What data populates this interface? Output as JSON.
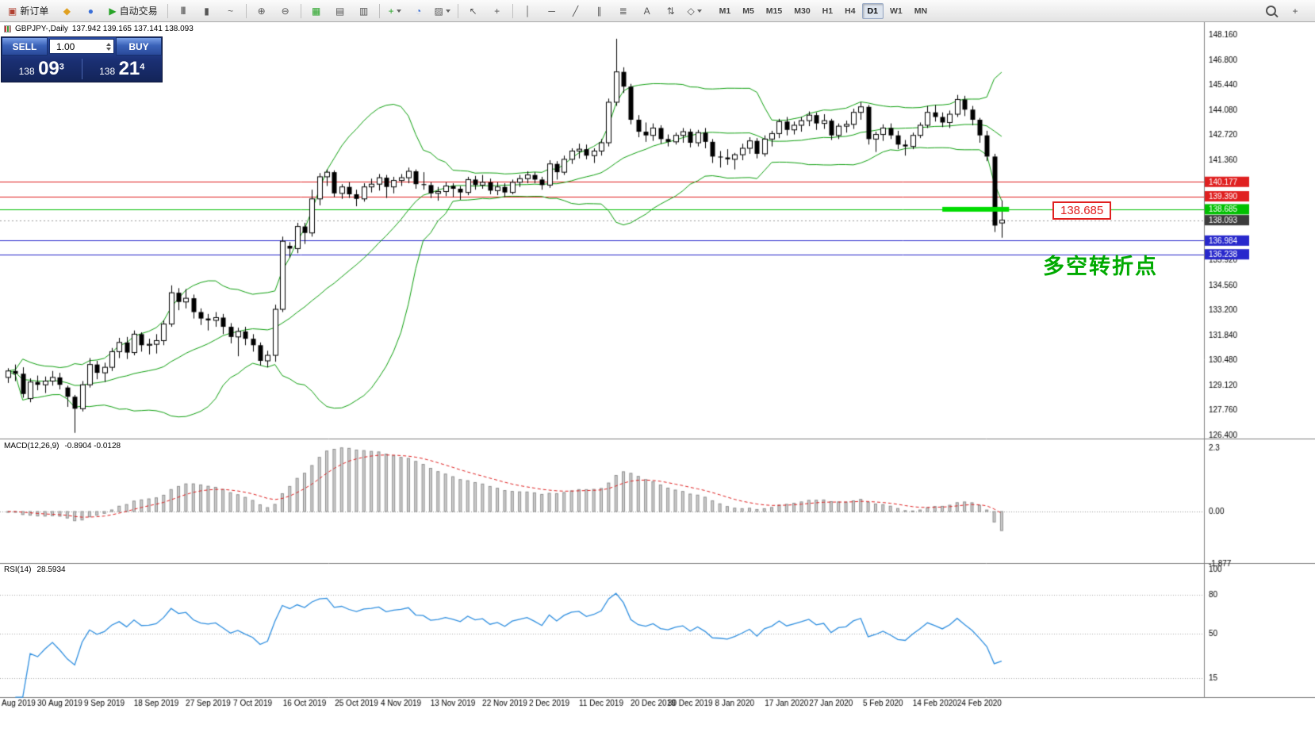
{
  "toolbar": {
    "items": [
      {
        "type": "button",
        "name": "new-order-button",
        "glyph": "▣",
        "color": "#b04030",
        "label": "新订单"
      },
      {
        "type": "icon",
        "name": "metaeditor-icon",
        "glyph": "◆",
        "color": "#e0a020"
      },
      {
        "type": "icon",
        "name": "refresh-icon",
        "glyph": "●",
        "color": "#3a6fd8"
      },
      {
        "type": "button",
        "name": "autotrading-button",
        "glyph": "▶",
        "color": "#28a428",
        "label": "自动交易"
      },
      {
        "type": "sep"
      },
      {
        "type": "icon",
        "name": "bar-chart-icon",
        "glyph": "|||",
        "bars": true
      },
      {
        "type": "icon",
        "name": "candlestick-chart-icon",
        "glyph": "▮"
      },
      {
        "type": "icon",
        "name": "line-chart-icon",
        "glyph": "~"
      },
      {
        "type": "sep"
      },
      {
        "type": "icon",
        "name": "zoom-in-icon",
        "glyph": "⊕"
      },
      {
        "type": "icon",
        "name": "zoom-out-icon",
        "glyph": "⊖"
      },
      {
        "type": "sep"
      },
      {
        "type": "icon",
        "name": "tile-windows-icon",
        "glyph": "▦",
        "color": "#28a428"
      },
      {
        "type": "icon",
        "name": "cascade-windows-icon",
        "glyph": "▤"
      },
      {
        "type": "icon",
        "name": "stack-windows-icon",
        "glyph": "▥"
      },
      {
        "type": "sep"
      },
      {
        "type": "icon",
        "name": "indicators-icon",
        "glyph": "+",
        "color": "#28a428",
        "dropdown": true
      },
      {
        "type": "icon",
        "name": "cycles-icon",
        "glyph": "◔",
        "color": "#3a6fd8"
      },
      {
        "type": "icon",
        "name": "templates-icon",
        "glyph": "▨",
        "dropdown": true
      },
      {
        "type": "sep"
      },
      {
        "type": "icon",
        "name": "cursor-icon",
        "glyph": "↖"
      },
      {
        "type": "icon",
        "name": "crosshair-icon",
        "glyph": "+"
      },
      {
        "type": "sep"
      },
      {
        "type": "icon",
        "name": "vertical-line-icon",
        "glyph": "│"
      },
      {
        "type": "icon",
        "name": "horizontal-line-icon",
        "glyph": "─"
      },
      {
        "type": "icon",
        "name": "trendline-icon",
        "glyph": "╱"
      },
      {
        "type": "icon",
        "name": "channel-icon",
        "glyph": "∥"
      },
      {
        "type": "icon",
        "name": "fibonacci-icon",
        "glyph": "≣"
      },
      {
        "type": "icon",
        "name": "text-icon",
        "glyph": "A"
      },
      {
        "type": "icon",
        "name": "arrows-icon",
        "glyph": "⇅"
      },
      {
        "type": "icon",
        "name": "shapes-icon",
        "glyph": "◇",
        "dropdown": true
      }
    ],
    "timeframes": [
      "M1",
      "M5",
      "M15",
      "M30",
      "H1",
      "H4",
      "D1",
      "W1",
      "MN"
    ],
    "active_timeframe": "D1",
    "right_items": [
      {
        "name": "search-icon",
        "kind": "magnifier"
      },
      {
        "name": "crosshair-pointer-icon",
        "glyph": "+"
      }
    ]
  },
  "chart": {
    "symbol": "GBPJPY-,Daily",
    "ohlc": "137.942 139.165 137.141 138.093"
  },
  "trade_panel": {
    "sell_label": "SELL",
    "buy_label": "BUY",
    "volume": "1.00",
    "sell_price": {
      "prefix": "138",
      "big": "09",
      "sup": "3"
    },
    "buy_price": {
      "prefix": "138",
      "big": "21",
      "sup": "4"
    }
  },
  "annotations": {
    "price_label": "138.685",
    "note_text": "多空转折点"
  },
  "indicators": {
    "macd": {
      "title": "MACD(12,26,9)",
      "values": "-0.8904 -0.0128",
      "fast": 12,
      "slow": 26,
      "signal_period": 9,
      "axis": [
        {
          "text": "2.3",
          "value": 2.3
        },
        {
          "text": "0.00",
          "value": 0
        },
        {
          "text": "-1.877",
          "value": -1.877
        }
      ],
      "signal_color": "#e02020",
      "hist_fill": "#cdcdcd",
      "hist_stroke": "#8f8f8f"
    },
    "rsi": {
      "title": "RSI(14)",
      "value": "28.5934",
      "period": 14,
      "axis": [
        {
          "text": "100",
          "value": 100
        },
        {
          "text": "80",
          "value": 80
        },
        {
          "text": "50",
          "value": 50
        },
        {
          "text": "15",
          "value": 15
        }
      ],
      "levels": [
        80,
        50,
        15
      ],
      "line_color": "#2f8fe0"
    }
  },
  "main_chart": {
    "price_axis": [
      "148.160",
      "146.800",
      "145.440",
      "144.080",
      "142.720",
      "141.360",
      "135.920",
      "134.560",
      "133.200",
      "131.840",
      "130.480",
      "129.120",
      "127.760",
      "126.400"
    ],
    "hlines": [
      {
        "label": "140.177",
        "color": "#e02020"
      },
      {
        "label": "139.390",
        "color": "#e02020"
      },
      {
        "label": "138.685",
        "color": "#00c000"
      },
      {
        "label": "136.984",
        "color": "#2828cc"
      },
      {
        "label": "136.238",
        "color": "#2828cc"
      }
    ],
    "current_price": {
      "label": "138.093",
      "color": "#3c3c3c"
    },
    "highlight": {
      "price": 138.685,
      "from_index": 126,
      "to_index": 135,
      "color": "#00dc00"
    },
    "bollinger": {
      "period": 20,
      "deviation": 2,
      "color": "#0fa00f"
    },
    "date_labels": [
      {
        "i": 0,
        "t": "Aug 2019"
      },
      {
        "i": 7,
        "t": "30 Aug 2019"
      },
      {
        "i": 13,
        "t": "9 Sep 2019"
      },
      {
        "i": 20,
        "t": "18 Sep 2019"
      },
      {
        "i": 27,
        "t": "27 Sep 2019"
      },
      {
        "i": 33,
        "t": "7 Oct 2019"
      },
      {
        "i": 40,
        "t": "16 Oct 2019"
      },
      {
        "i": 47,
        "t": "25 Oct 2019"
      },
      {
        "i": 53,
        "t": "4 Nov 2019"
      },
      {
        "i": 60,
        "t": "13 Nov 2019"
      },
      {
        "i": 67,
        "t": "22 Nov 2019"
      },
      {
        "i": 73,
        "t": "2 Dec 2019"
      },
      {
        "i": 80,
        "t": "11 Dec 2019"
      },
      {
        "i": 87,
        "t": "20 Dec 2019"
      },
      {
        "i": 92,
        "t": "30 Dec 2019"
      },
      {
        "i": 98,
        "t": "8 Jan 2020"
      },
      {
        "i": 105,
        "t": "17 Jan 2020"
      },
      {
        "i": 111,
        "t": "27 Jan 2020"
      },
      {
        "i": 118,
        "t": "5 Feb 2020"
      },
      {
        "i": 125,
        "t": "14 Feb 2020"
      },
      {
        "i": 131,
        "t": "24 Feb 2020"
      }
    ],
    "candles": [
      [
        129.55,
        130.05,
        129.25,
        129.9
      ],
      [
        129.9,
        130.25,
        129.35,
        129.75
      ],
      [
        129.75,
        130.1,
        128.45,
        128.65
      ],
      [
        128.4,
        129.5,
        128.2,
        129.3
      ],
      [
        129.3,
        129.65,
        128.85,
        129.15
      ],
      [
        129.15,
        129.6,
        128.7,
        129.35
      ],
      [
        129.35,
        129.9,
        129.1,
        129.55
      ],
      [
        129.55,
        129.8,
        128.9,
        129.15
      ],
      [
        129.0,
        129.1,
        127.95,
        128.5
      ],
      [
        128.5,
        128.6,
        126.54,
        127.85
      ],
      [
        127.85,
        129.35,
        127.7,
        129.15
      ],
      [
        129.15,
        130.6,
        129.0,
        130.25
      ],
      [
        130.25,
        130.45,
        129.45,
        129.8
      ],
      [
        129.8,
        130.35,
        129.3,
        130.1
      ],
      [
        130.1,
        131.15,
        129.9,
        130.95
      ],
      [
        130.95,
        131.7,
        130.6,
        131.45
      ],
      [
        131.45,
        131.75,
        130.55,
        130.9
      ],
      [
        130.9,
        132.1,
        130.75,
        131.9
      ],
      [
        131.9,
        132.0,
        130.95,
        131.3
      ],
      [
        131.3,
        131.65,
        130.8,
        131.35
      ],
      [
        131.35,
        131.9,
        130.85,
        131.55
      ],
      [
        131.55,
        132.65,
        131.3,
        132.45
      ],
      [
        132.45,
        134.55,
        132.3,
        134.15
      ],
      [
        134.15,
        134.4,
        133.2,
        133.65
      ],
      [
        133.65,
        134.35,
        133.3,
        133.85
      ],
      [
        133.85,
        134.05,
        132.75,
        133.1
      ],
      [
        133.1,
        133.3,
        132.4,
        132.75
      ],
      [
        132.75,
        133.0,
        132.1,
        132.65
      ],
      [
        132.65,
        133.1,
        132.3,
        132.8
      ],
      [
        132.8,
        133.0,
        131.9,
        132.3
      ],
      [
        132.3,
        132.5,
        131.4,
        131.75
      ],
      [
        131.75,
        132.25,
        130.7,
        132.05
      ],
      [
        132.05,
        132.3,
        131.3,
        131.65
      ],
      [
        131.65,
        131.9,
        130.95,
        131.3
      ],
      [
        131.3,
        131.45,
        130.2,
        130.45
      ],
      [
        130.45,
        131.0,
        130.1,
        130.75
      ],
      [
        130.75,
        133.5,
        130.4,
        133.25
      ],
      [
        133.25,
        137.2,
        133.1,
        136.95
      ],
      [
        136.7,
        136.9,
        136.05,
        136.55
      ],
      [
        136.55,
        137.95,
        136.3,
        137.75
      ],
      [
        137.75,
        137.95,
        136.8,
        137.4
      ],
      [
        137.4,
        139.75,
        137.2,
        139.25
      ],
      [
        139.25,
        140.65,
        138.9,
        140.45
      ],
      [
        140.45,
        140.85,
        139.95,
        140.7
      ],
      [
        140.7,
        140.8,
        139.35,
        139.55
      ],
      [
        139.55,
        140.05,
        139.25,
        139.9
      ],
      [
        139.9,
        140.15,
        139.3,
        139.5
      ],
      [
        139.5,
        139.75,
        138.85,
        139.25
      ],
      [
        139.25,
        140.1,
        139.1,
        139.9
      ],
      [
        139.9,
        140.35,
        139.6,
        140.05
      ],
      [
        140.05,
        140.6,
        139.7,
        140.4
      ],
      [
        140.4,
        140.55,
        139.3,
        139.9
      ],
      [
        139.9,
        140.45,
        139.55,
        140.25
      ],
      [
        140.25,
        140.6,
        139.95,
        140.4
      ],
      [
        140.4,
        140.95,
        140.1,
        140.75
      ],
      [
        140.75,
        140.85,
        139.8,
        140.05
      ],
      [
        140.05,
        140.7,
        139.75,
        140.0
      ],
      [
        140.0,
        140.15,
        139.3,
        139.55
      ],
      [
        139.55,
        139.9,
        139.15,
        139.65
      ],
      [
        139.65,
        140.15,
        139.4,
        139.95
      ],
      [
        139.95,
        140.1,
        139.35,
        139.8
      ],
      [
        139.8,
        139.95,
        139.2,
        139.6
      ],
      [
        139.6,
        140.45,
        139.45,
        140.3
      ],
      [
        140.3,
        140.5,
        139.75,
        140.0
      ],
      [
        140.0,
        140.55,
        139.8,
        140.15
      ],
      [
        140.15,
        140.35,
        139.5,
        139.7
      ],
      [
        139.7,
        140.15,
        139.45,
        139.9
      ],
      [
        139.9,
        140.1,
        139.35,
        139.6
      ],
      [
        139.6,
        140.3,
        139.5,
        140.15
      ],
      [
        140.15,
        140.55,
        139.9,
        140.35
      ],
      [
        140.35,
        140.75,
        140.1,
        140.55
      ],
      [
        140.55,
        140.7,
        140.1,
        140.3
      ],
      [
        140.3,
        140.45,
        139.75,
        140.0
      ],
      [
        140.0,
        141.35,
        139.85,
        141.15
      ],
      [
        141.15,
        141.3,
        140.3,
        140.7
      ],
      [
        140.7,
        141.6,
        140.55,
        141.4
      ],
      [
        141.4,
        142.0,
        141.15,
        141.85
      ],
      [
        141.85,
        142.25,
        141.45,
        141.95
      ],
      [
        141.95,
        142.2,
        141.4,
        141.6
      ],
      [
        141.6,
        142.0,
        141.2,
        141.85
      ],
      [
        141.85,
        142.5,
        141.6,
        142.3
      ],
      [
        142.3,
        144.7,
        142.1,
        144.5
      ],
      [
        144.5,
        147.95,
        144.3,
        146.15
      ],
      [
        146.15,
        146.4,
        145.0,
        145.35
      ],
      [
        145.35,
        145.5,
        143.3,
        143.55
      ],
      [
        143.55,
        143.8,
        142.6,
        142.9
      ],
      [
        142.9,
        143.4,
        142.35,
        142.7
      ],
      [
        142.7,
        143.35,
        142.4,
        143.1
      ],
      [
        143.1,
        143.25,
        142.25,
        142.5
      ],
      [
        142.5,
        142.75,
        142.1,
        142.35
      ],
      [
        142.35,
        142.85,
        142.2,
        142.7
      ],
      [
        142.7,
        143.1,
        142.3,
        142.9
      ],
      [
        142.9,
        143.05,
        142.05,
        142.3
      ],
      [
        142.3,
        143.0,
        142.1,
        142.85
      ],
      [
        142.85,
        143.1,
        142.0,
        142.35
      ],
      [
        142.35,
        142.5,
        141.2,
        141.55
      ],
      [
        141.55,
        141.85,
        140.95,
        141.5
      ],
      [
        141.5,
        141.95,
        141.1,
        141.4
      ],
      [
        141.4,
        141.75,
        140.85,
        141.65
      ],
      [
        141.65,
        142.25,
        141.35,
        142.0
      ],
      [
        142.0,
        142.6,
        141.7,
        142.4
      ],
      [
        142.4,
        142.55,
        141.45,
        141.7
      ],
      [
        141.7,
        142.7,
        141.55,
        142.5
      ],
      [
        142.5,
        142.95,
        142.1,
        142.8
      ],
      [
        142.8,
        143.6,
        142.55,
        143.45
      ],
      [
        143.45,
        143.7,
        142.7,
        143.0
      ],
      [
        143.0,
        143.45,
        142.75,
        143.25
      ],
      [
        143.25,
        143.7,
        142.9,
        143.5
      ],
      [
        143.5,
        144.0,
        143.2,
        143.8
      ],
      [
        143.8,
        143.95,
        143.0,
        143.35
      ],
      [
        143.35,
        143.85,
        143.05,
        143.5
      ],
      [
        143.5,
        143.6,
        142.45,
        142.7
      ],
      [
        142.7,
        143.35,
        142.5,
        143.2
      ],
      [
        143.2,
        143.5,
        142.85,
        143.3
      ],
      [
        143.3,
        144.15,
        143.05,
        143.95
      ],
      [
        143.95,
        144.5,
        143.55,
        144.25
      ],
      [
        144.25,
        144.35,
        142.2,
        142.5
      ],
      [
        142.5,
        142.9,
        141.8,
        142.75
      ],
      [
        142.75,
        143.3,
        142.4,
        143.1
      ],
      [
        143.1,
        143.35,
        142.5,
        142.7
      ],
      [
        142.7,
        142.95,
        141.95,
        142.2
      ],
      [
        142.2,
        142.45,
        141.6,
        142.1
      ],
      [
        142.1,
        142.85,
        141.95,
        142.7
      ],
      [
        142.7,
        143.4,
        142.55,
        143.25
      ],
      [
        143.25,
        144.3,
        143.1,
        143.95
      ],
      [
        143.95,
        144.35,
        143.45,
        143.7
      ],
      [
        143.7,
        143.95,
        143.15,
        143.4
      ],
      [
        143.4,
        144.05,
        143.1,
        143.85
      ],
      [
        143.85,
        144.9,
        143.7,
        144.65
      ],
      [
        144.65,
        144.85,
        143.75,
        144.1
      ],
      [
        144.1,
        144.3,
        143.25,
        143.55
      ],
      [
        143.55,
        143.65,
        142.3,
        142.7
      ],
      [
        142.7,
        142.95,
        141.3,
        141.55
      ],
      [
        141.55,
        141.7,
        137.45,
        137.8
      ],
      [
        137.942,
        139.165,
        137.141,
        138.093
      ]
    ]
  }
}
